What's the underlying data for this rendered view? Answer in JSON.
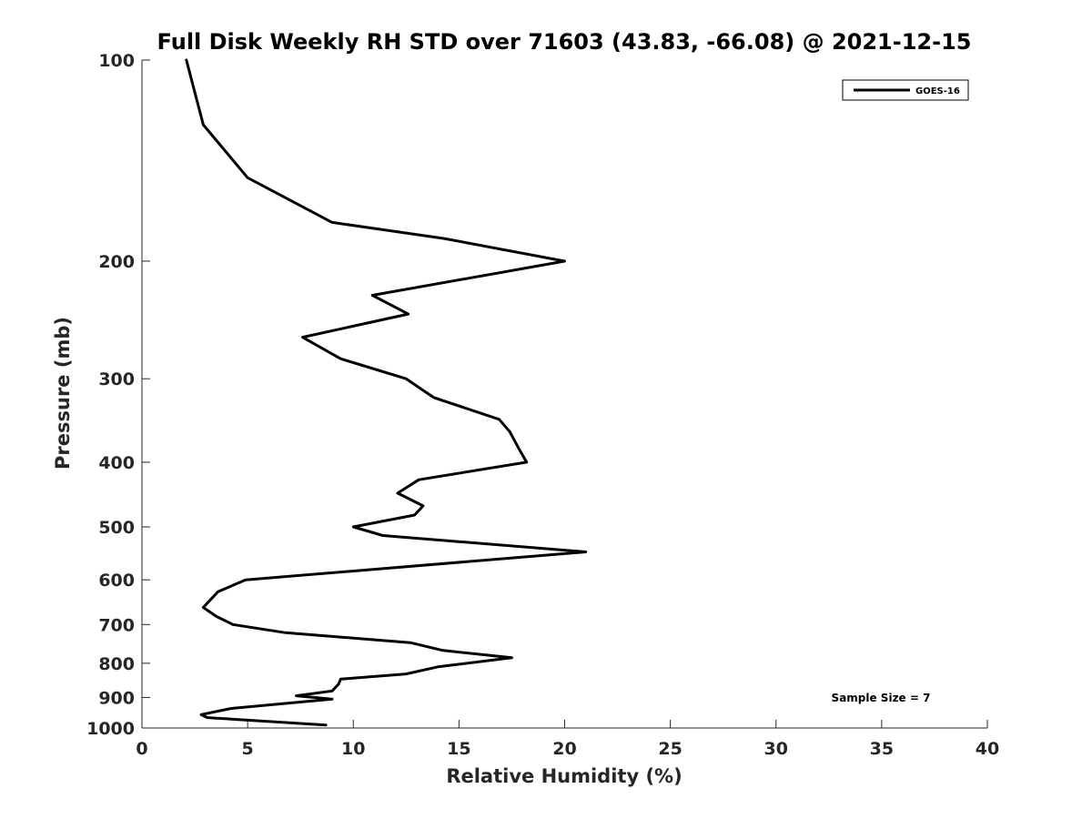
{
  "chart_data": {
    "type": "line",
    "title": "Full Disk Weekly RH STD over 71603 (43.83, -66.08) @ 2021-12-15",
    "xlabel": "Relative Humidity (%)",
    "ylabel": "Pressure (mb)",
    "xlim": [
      0,
      40
    ],
    "ylim": [
      100,
      1000
    ],
    "y_scale": "log",
    "y_reversed": true,
    "xticks": [
      0,
      5,
      10,
      15,
      20,
      25,
      30,
      35,
      40
    ],
    "yticks": [
      100,
      200,
      300,
      400,
      500,
      600,
      700,
      800,
      900,
      1000
    ],
    "legend_position": "top-right",
    "grid": false,
    "series": [
      {
        "name": "GOES-16",
        "color": "#000000",
        "x": [
          2.1,
          2.9,
          5.0,
          9.0,
          14.3,
          20.0,
          10.9,
          12.6,
          7.6,
          9.4,
          12.5,
          13.8,
          16.9,
          17.4,
          17.8,
          18.2,
          13.1,
          12.1,
          13.3,
          12.9,
          10.0,
          11.4,
          21.0,
          4.9,
          3.6,
          2.9,
          3.5,
          4.3,
          6.8,
          12.7,
          14.2,
          17.5,
          14.0,
          12.5,
          9.4,
          9.3,
          9.0,
          7.3,
          9.0,
          4.2,
          2.8,
          3.1,
          8.7
        ],
        "y": [
          100,
          125,
          150,
          175,
          185,
          200,
          225,
          240,
          260,
          280,
          300,
          320,
          345,
          360,
          380,
          400,
          425,
          445,
          465,
          480,
          500,
          515,
          545,
          600,
          625,
          660,
          680,
          700,
          720,
          745,
          765,
          785,
          810,
          830,
          845,
          860,
          880,
          895,
          905,
          935,
          955,
          965,
          990
        ]
      }
    ],
    "legend": [
      "GOES-16"
    ],
    "annotation": "Sample Size = 7"
  }
}
